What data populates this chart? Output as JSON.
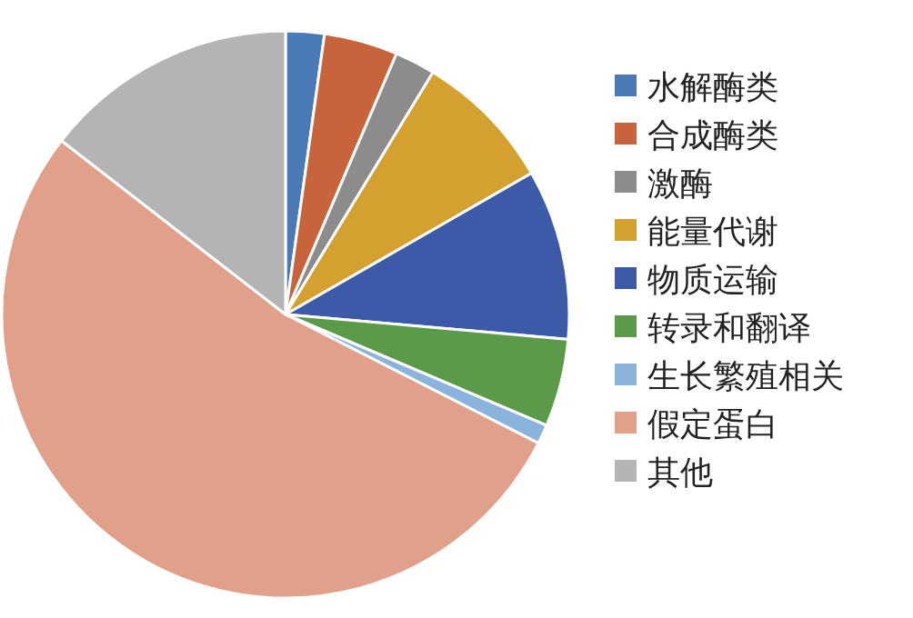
{
  "chart_data": {
    "type": "pie",
    "legend": "right",
    "categories": [
      "水解酶类",
      "合成酶类",
      "激酶",
      "能量代谢",
      "物质运输",
      "转录和翻译",
      "生长繁殖相关",
      "假定蛋白",
      "其他"
    ],
    "values": [
      2.2,
      4.2,
      2.3,
      8,
      9.7,
      5,
      1.1,
      53,
      14.5
    ],
    "colors": [
      "#4a7ab5",
      "#c8643c",
      "#8c8c8c",
      "#d4a030",
      "#3c5aa8",
      "#5a9a48",
      "#8ab4dc",
      "#e0a08a",
      "#b4b4b4"
    ]
  }
}
